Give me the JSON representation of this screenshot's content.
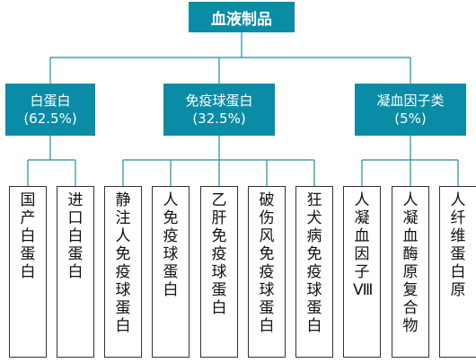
{
  "root": {
    "label": "血液制品"
  },
  "categories": [
    {
      "name": "白蛋白",
      "share": "(62.5%)"
    },
    {
      "name": "免疫球蛋白",
      "share": "(32.5%)"
    },
    {
      "name": "凝血因子类",
      "share": "(5%)"
    }
  ],
  "products": [
    "国产白蛋白",
    "进口白蛋白",
    "静注人免疫球蛋白",
    "人免疫球蛋白",
    "乙肝免疫球蛋白",
    "破伤风免疫球蛋白",
    "狂犬病免疫球蛋白",
    "人凝血因子Ⅷ",
    "人凝血酶原复合物",
    "人纤维蛋白原"
  ],
  "colors": {
    "node_fill": "#0a8ca6",
    "connector": "#1e8ea0",
    "leaf_border": "#333333"
  }
}
